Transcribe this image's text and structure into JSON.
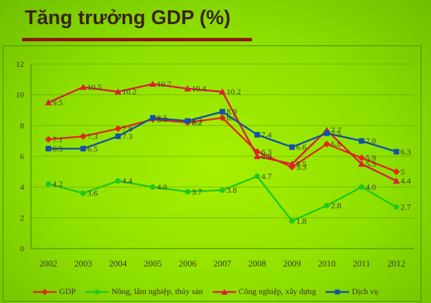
{
  "title": "Tăng trưởng GDP (%)",
  "colors": {
    "gdp": "#e02818",
    "agriculture": "#22c81e",
    "industry": "#d8203a",
    "services": "#1450a8",
    "grid": "#5c9a00",
    "axis_text": "#3b3b2b"
  },
  "chart_data": {
    "type": "line",
    "x": [
      "2002",
      "2003",
      "2004",
      "2005",
      "2006",
      "2007",
      "2008",
      "2009",
      "2010",
      "2011",
      "2012"
    ],
    "ylim": [
      0,
      12
    ],
    "yticks": [
      0,
      2,
      4,
      6,
      8,
      10,
      12
    ],
    "grid": true,
    "legend_position": "bottom",
    "series": [
      {
        "key": "gdp",
        "name": "GDP",
        "marker": "diamond",
        "values": [
          7.1,
          7.3,
          7.8,
          8.4,
          8.2,
          8.5,
          6.3,
          5.3,
          6.8,
          5.9,
          5.0
        ],
        "labels": [
          "7.1",
          "7.3",
          "7.8",
          "8.4",
          "8.2",
          "8.5",
          "6.3",
          "5.3",
          "6.8",
          "5.9",
          "5"
        ]
      },
      {
        "key": "agriculture",
        "name": "Nông, lâm nghiệp, thủy sản",
        "marker": "circle",
        "values": [
          4.2,
          3.6,
          4.4,
          4.0,
          3.7,
          3.8,
          4.7,
          1.8,
          2.8,
          4.0,
          2.7
        ],
        "labels": [
          "4.2",
          "3.6",
          "4.4",
          "4.0",
          "3.7",
          "3.8",
          "4.7",
          "1.8",
          "2.8",
          "4.0",
          "2.7"
        ]
      },
      {
        "key": "industry",
        "name": "Công nghiệp, xây dựng",
        "marker": "triangle",
        "values": [
          9.5,
          10.5,
          10.2,
          10.7,
          10.4,
          10.2,
          6.0,
          5.5,
          7.7,
          5.5,
          4.4
        ],
        "labels": [
          "9.5",
          "10.5",
          "10.2",
          "10.7",
          "10.4",
          "10.2",
          "6.0",
          "5.5",
          "7.7",
          "5.5",
          "4.4"
        ]
      },
      {
        "key": "services",
        "name": "Dịch vụ",
        "marker": "square",
        "values": [
          6.5,
          6.5,
          7.3,
          8.5,
          8.3,
          8.9,
          7.4,
          6.6,
          7.5,
          7.0,
          6.3
        ],
        "labels": [
          "6.5",
          "6.5",
          "7.3",
          "8.5",
          "8.3",
          "8.9",
          "7.4",
          "6.6",
          "7.5",
          "7.0",
          "6.3"
        ]
      }
    ]
  }
}
